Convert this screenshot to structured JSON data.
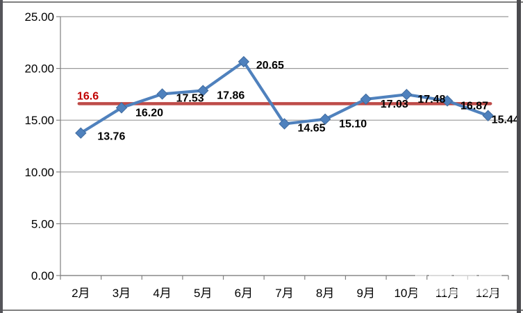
{
  "chart_data": {
    "type": "line",
    "title": "",
    "xlabel": "",
    "ylabel": "",
    "categories": [
      "2月",
      "3月",
      "4月",
      "5月",
      "6月",
      "7月",
      "8月",
      "9月",
      "10月",
      "11月",
      "12月"
    ],
    "values": [
      13.76,
      16.2,
      17.53,
      17.86,
      20.65,
      14.65,
      15.1,
      17.03,
      17.48,
      16.87,
      15.44
    ],
    "point_labels": [
      "13.76",
      "16.20",
      "17.53",
      "17.86",
      "20.65",
      "14.65",
      "15.10",
      "17.03",
      "17.48",
      "16.87",
      "15.44"
    ],
    "ylim": [
      0,
      25
    ],
    "y_tick_interval": 5,
    "y_tick_labels": [
      "0.00",
      "5.00",
      "10.00",
      "15.00",
      "20.00",
      "25.00"
    ],
    "grid": "horizontal",
    "legend": "none",
    "marker": "diamond",
    "series_color": "#4F81BD",
    "marker_edge_color": "#3E6A9E",
    "grid_color": "#999999",
    "axis_color": "#808080",
    "reference_line": {
      "value": 16.6,
      "label": "16.6",
      "color": "#BE4B48",
      "label_color": "#C00000"
    }
  }
}
